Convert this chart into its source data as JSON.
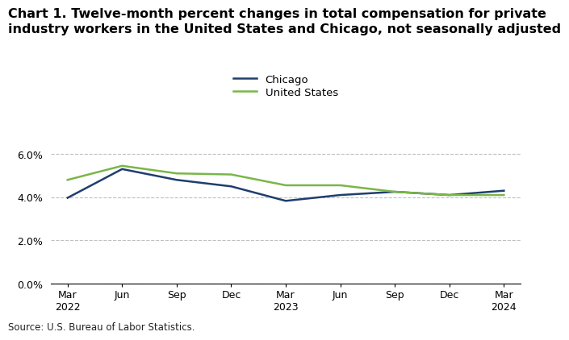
{
  "title_line1": "Chart 1. Twelve-month percent changes in total compensation for private",
  "title_line2": "industry workers in the United States and Chicago, not seasonally adjusted",
  "x_labels": [
    "Mar\n2022",
    "Jun",
    "Sep",
    "Dec",
    "Mar\n2023",
    "Jun",
    "Sep",
    "Dec",
    "Mar\n2024"
  ],
  "chicago_values": [
    3.97,
    5.3,
    4.8,
    4.5,
    3.83,
    4.1,
    4.25,
    4.1,
    4.3
  ],
  "us_values": [
    4.8,
    5.45,
    5.1,
    5.05,
    4.55,
    4.55,
    4.25,
    4.1,
    4.1
  ],
  "chicago_color": "#1f3e6e",
  "us_color": "#7ab648",
  "legend_labels": [
    "Chicago",
    "United States"
  ],
  "source_text": "Source: U.S. Bureau of Labor Statistics.",
  "background_color": "#ffffff",
  "grid_color": "#c0c0c0",
  "title_fontsize": 11.5,
  "legend_fontsize": 9.5,
  "tick_fontsize": 9.0,
  "source_fontsize": 8.5
}
